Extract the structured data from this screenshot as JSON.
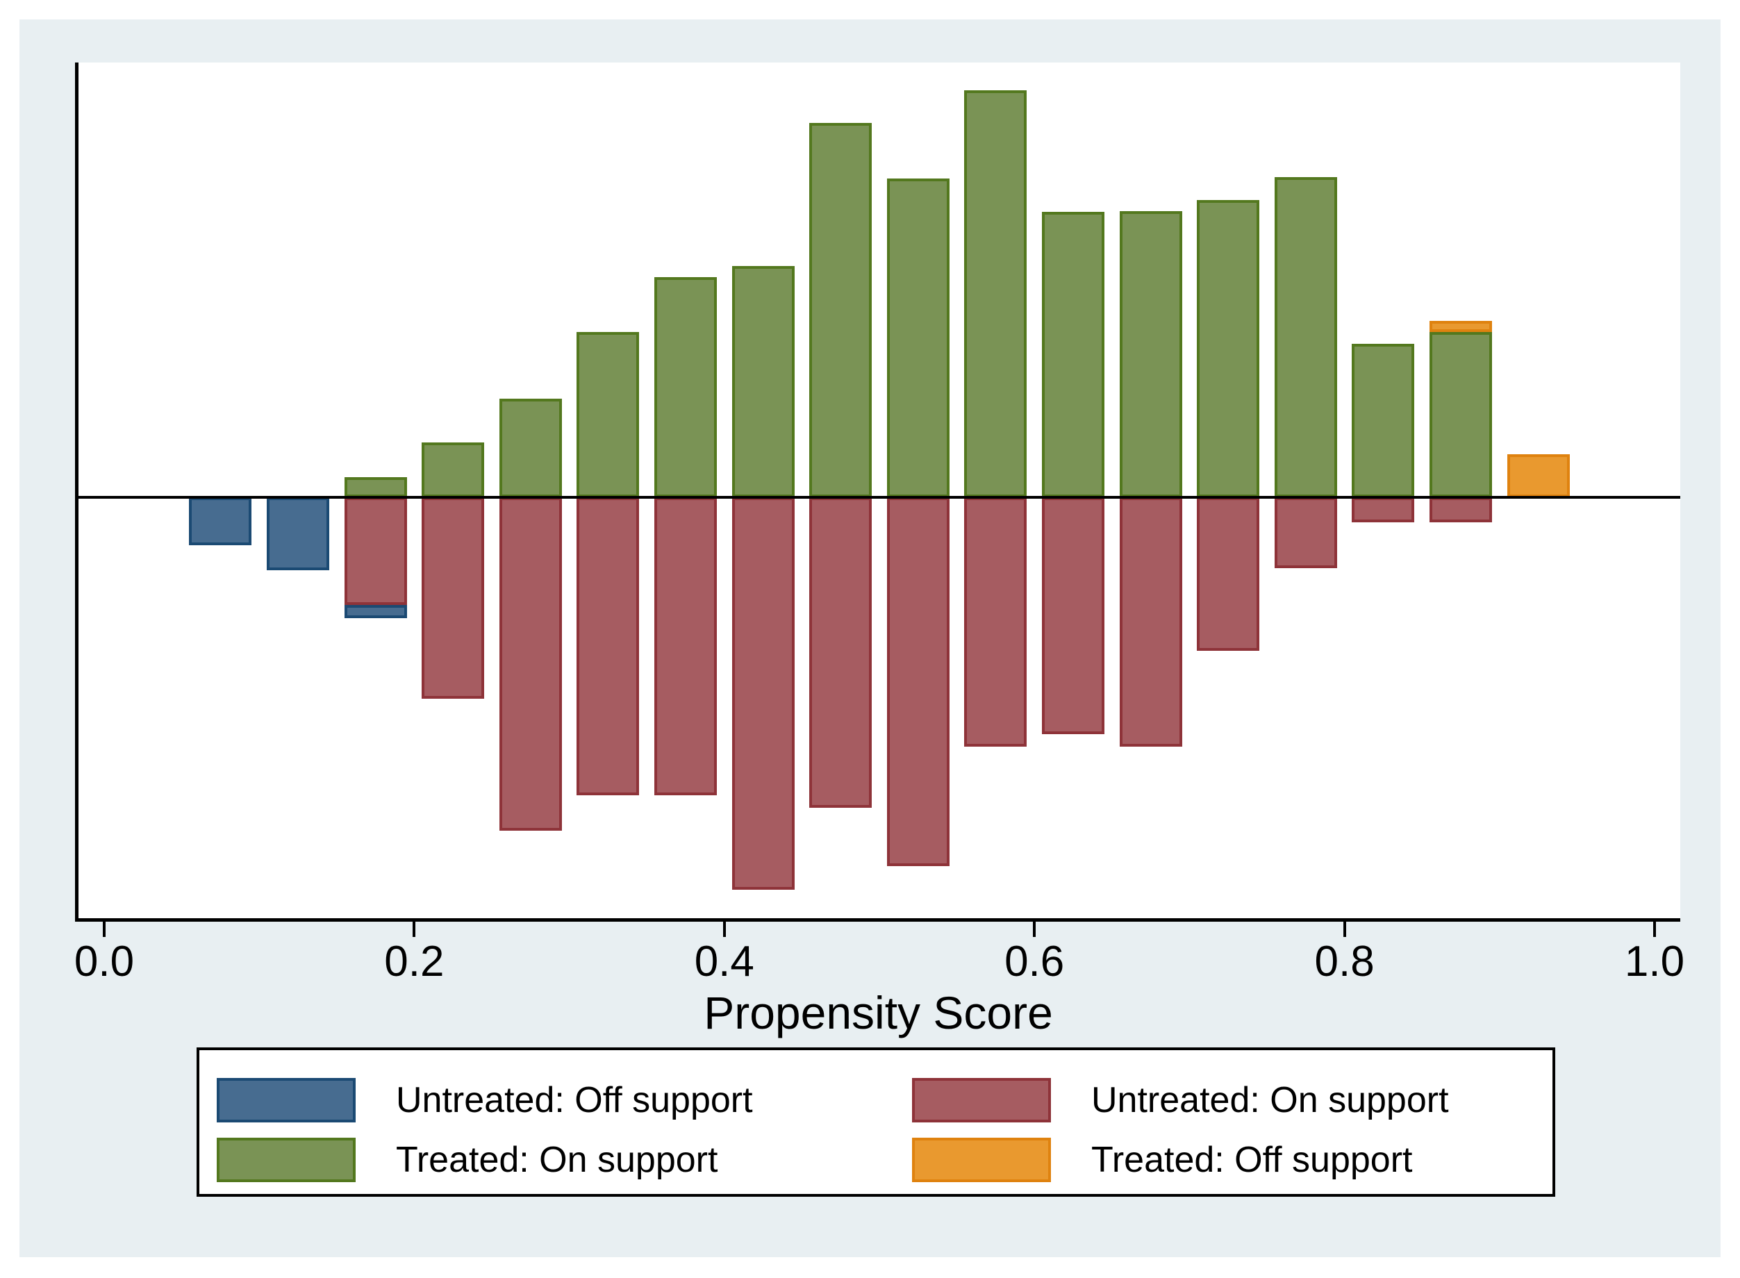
{
  "figure": {
    "description": "Stata psgraph-style propensity score overlap histogram: treated plotted above the zero line, untreated plotted below"
  },
  "colors": {
    "canvas": "#ffffff",
    "panel": "#e8eff2",
    "plot_bg": "#ffffff",
    "axis_line": "#000000",
    "text": "#000000",
    "legend_bg": "#ffffff",
    "legend_border": "#000000"
  },
  "x_axis": {
    "title": "Propensity Score",
    "ticks": [
      {
        "value": 0.0,
        "label": "0.0"
      },
      {
        "value": 0.2,
        "label": "0.2"
      },
      {
        "value": 0.4,
        "label": "0.4"
      },
      {
        "value": 0.6,
        "label": "0.6"
      },
      {
        "value": 0.8,
        "label": "0.8"
      },
      {
        "value": 1.0,
        "label": "1.0"
      }
    ]
  },
  "legend": {
    "items": [
      {
        "key": "untreated_off",
        "label": "Untreated: Off support"
      },
      {
        "key": "untreated_on",
        "label": "Untreated: On support"
      },
      {
        "key": "treated_on",
        "label": "Treated: On support"
      },
      {
        "key": "treated_off",
        "label": "Treated: Off support"
      }
    ]
  },
  "chart_data": {
    "type": "bar",
    "subtype": "diverging propensity-score histogram (Stata psgraph)",
    "title": "",
    "xlabel": "Propensity Score",
    "ylabel": "",
    "x_range": [
      0,
      1
    ],
    "bin_width": 0.05,
    "bar_visual_width": 0.04,
    "y_axis_note": "no y-axis labels shown; treated frequencies drawn upward, untreated frequencies drawn downward; segment from/to values are relative heights in screen pixels (proportional to frequency)",
    "legend_position": "bottom",
    "grid": false,
    "series_colors": {
      "treated_on": {
        "fill": "#7a9355",
        "border": "#53781e"
      },
      "treated_off": {
        "fill": "#e9992f",
        "border": "#df820f"
      },
      "untreated_on": {
        "fill": "#a65c61",
        "border": "#8e3339"
      },
      "untreated_off": {
        "fill": "#476c90",
        "border": "#1b4a73"
      }
    },
    "bins": [
      {
        "center": 0.075,
        "segments": [
          {
            "series": "untreated_off",
            "from": 0,
            "to": -69
          }
        ]
      },
      {
        "center": 0.125,
        "segments": [
          {
            "series": "untreated_off",
            "from": 0,
            "to": -105
          }
        ]
      },
      {
        "center": 0.175,
        "segments": [
          {
            "series": "treated_on",
            "from": 0,
            "to": 29
          },
          {
            "series": "untreated_on",
            "from": 0,
            "to": -155
          },
          {
            "series": "untreated_off",
            "from": -155,
            "to": -174
          }
        ]
      },
      {
        "center": 0.225,
        "segments": [
          {
            "series": "treated_on",
            "from": 0,
            "to": 79
          },
          {
            "series": "untreated_on",
            "from": 0,
            "to": -290
          }
        ]
      },
      {
        "center": 0.275,
        "segments": [
          {
            "series": "treated_on",
            "from": 0,
            "to": 142
          },
          {
            "series": "untreated_on",
            "from": 0,
            "to": -480
          }
        ]
      },
      {
        "center": 0.325,
        "segments": [
          {
            "series": "treated_on",
            "from": 0,
            "to": 238
          },
          {
            "series": "untreated_on",
            "from": 0,
            "to": -429
          }
        ]
      },
      {
        "center": 0.375,
        "segments": [
          {
            "series": "treated_on",
            "from": 0,
            "to": 317
          },
          {
            "series": "untreated_on",
            "from": 0,
            "to": -429
          }
        ]
      },
      {
        "center": 0.425,
        "segments": [
          {
            "series": "treated_on",
            "from": 0,
            "to": 333
          },
          {
            "series": "untreated_on",
            "from": 0,
            "to": -565
          }
        ]
      },
      {
        "center": 0.475,
        "segments": [
          {
            "series": "treated_on",
            "from": 0,
            "to": 539
          },
          {
            "series": "untreated_on",
            "from": 0,
            "to": -447
          }
        ]
      },
      {
        "center": 0.525,
        "segments": [
          {
            "series": "treated_on",
            "from": 0,
            "to": 459
          },
          {
            "series": "untreated_on",
            "from": 0,
            "to": -531
          }
        ]
      },
      {
        "center": 0.575,
        "segments": [
          {
            "series": "treated_on",
            "from": 0,
            "to": 586
          },
          {
            "series": "untreated_on",
            "from": 0,
            "to": -359
          }
        ]
      },
      {
        "center": 0.625,
        "segments": [
          {
            "series": "treated_on",
            "from": 0,
            "to": 411
          },
          {
            "series": "untreated_on",
            "from": 0,
            "to": -341
          }
        ]
      },
      {
        "center": 0.675,
        "segments": [
          {
            "series": "treated_on",
            "from": 0,
            "to": 412
          },
          {
            "series": "untreated_on",
            "from": 0,
            "to": -359
          }
        ]
      },
      {
        "center": 0.725,
        "segments": [
          {
            "series": "treated_on",
            "from": 0,
            "to": 428
          },
          {
            "series": "untreated_on",
            "from": 0,
            "to": -221
          }
        ]
      },
      {
        "center": 0.775,
        "segments": [
          {
            "series": "treated_on",
            "from": 0,
            "to": 461
          },
          {
            "series": "untreated_on",
            "from": 0,
            "to": -102
          }
        ]
      },
      {
        "center": 0.825,
        "segments": [
          {
            "series": "treated_on",
            "from": 0,
            "to": 221
          },
          {
            "series": "untreated_on",
            "from": 0,
            "to": -36
          }
        ]
      },
      {
        "center": 0.875,
        "segments": [
          {
            "series": "treated_on",
            "from": 0,
            "to": 238
          },
          {
            "series": "treated_off",
            "from": 238,
            "to": 254
          },
          {
            "series": "untreated_on",
            "from": 0,
            "to": -36
          }
        ]
      },
      {
        "center": 0.925,
        "segments": [
          {
            "series": "treated_off",
            "from": 0,
            "to": 62
          }
        ]
      }
    ]
  }
}
